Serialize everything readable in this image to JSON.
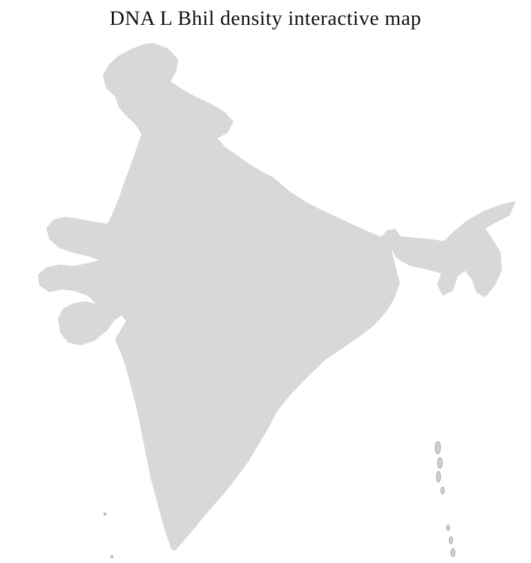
{
  "page": {
    "title": "DNA L Bhil density interactive map"
  },
  "map": {
    "colors": {
      "background": "#ffffff",
      "no_data": "#d8d8d8",
      "dark_no_data": "#8c8c8c",
      "district_border": "#ffffff",
      "state_border": "#8f8f8f",
      "outline": "#8f8f8f",
      "density_low": "#f7e7d9",
      "density_medium_low": "#e5bd9d",
      "density_medium": "#c1734c",
      "density_high": "#8c2d04",
      "island": "#cfcfcf"
    }
  }
}
